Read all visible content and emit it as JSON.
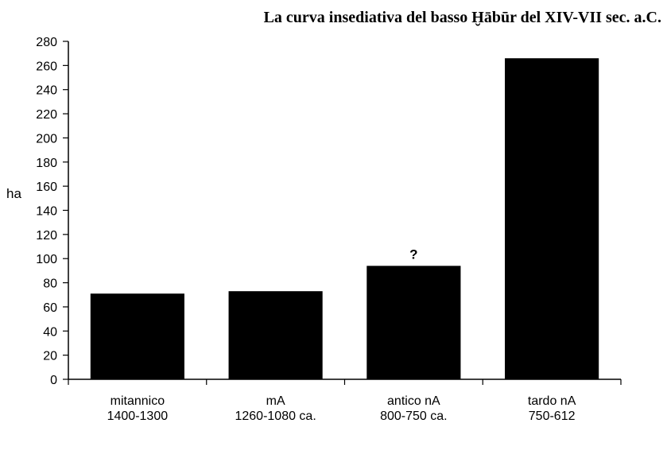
{
  "chart_data": {
    "type": "bar",
    "title": "La curva insediativa del basso Ḫābūr del XIV-VII sec. a.C.",
    "ylabel": "ha",
    "xlabel": "",
    "ylim": [
      0,
      280
    ],
    "ytick_step": 20,
    "grid": false,
    "legend": "none",
    "categories": [
      [
        "mitannico",
        "1400-1300"
      ],
      [
        "mA",
        "1260-1080 ca."
      ],
      [
        "antico nA",
        "800-750 ca."
      ],
      [
        "tardo nA",
        "750-612"
      ]
    ],
    "values": [
      71,
      73,
      94,
      266
    ],
    "annotations": [
      {
        "category_index": 2,
        "text": "?"
      }
    ],
    "bar_color": "#000000"
  }
}
